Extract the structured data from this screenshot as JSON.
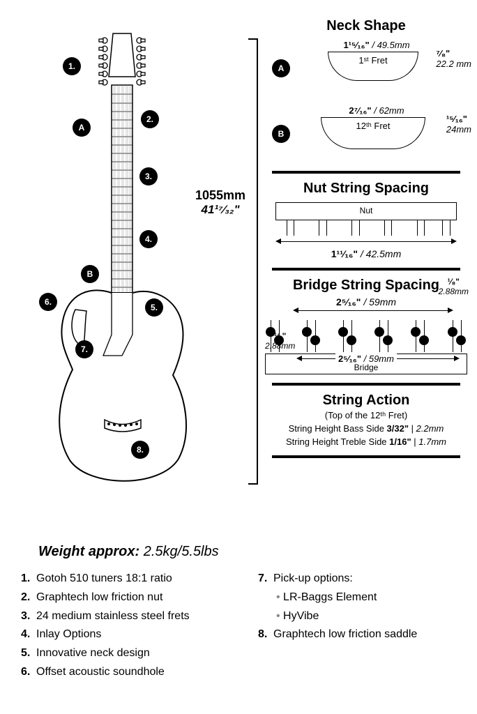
{
  "length": {
    "mm": "1055mm",
    "in": "41¹⁷⁄₃₂\""
  },
  "weight": {
    "label": "Weight approx:",
    "value": "2.5kg/5.5lbs"
  },
  "markers": {
    "n1": "1.",
    "n2": "2.",
    "n3": "3.",
    "n4": "4.",
    "n5": "5.",
    "n6": "6.",
    "n7": "7.",
    "n8": "8.",
    "A": "A",
    "B": "B"
  },
  "neck_shape": {
    "title": "Neck Shape",
    "a": {
      "label": "A",
      "width_in": "1¹⁵⁄₁₆\"",
      "width_mm": "49.5mm",
      "fret": "1ˢᵗ Fret",
      "height_in": "⁷⁄₈\"",
      "height_mm": "22.2 mm"
    },
    "b": {
      "label": "B",
      "width_in": "2⁷⁄₁₆\"",
      "width_mm": "62mm",
      "fret": "12ᵗʰ Fret",
      "height_in": "¹⁵⁄₁₆\"",
      "height_mm": "24mm"
    }
  },
  "nut_spacing": {
    "title": "Nut String Spacing",
    "bar_label": "Nut",
    "dim_in": "1¹¹⁄₁₆\"",
    "dim_mm": "42.5mm",
    "string_positions_pct": [
      6,
      10,
      24,
      28,
      42,
      46,
      60,
      64,
      78,
      82,
      92,
      96
    ]
  },
  "bridge_spacing": {
    "title": "Bridge String Spacing",
    "bar_label": "Bridge",
    "top_in": "2⁵⁄₁₆\"",
    "top_mm": "59mm",
    "mid_in": "2⁵⁄₁₆\"",
    "mid_mm": "59mm",
    "side_in": "¹⁄₈\"",
    "side_mm": "2.88mm",
    "pair_positions_pct": [
      5,
      23,
      41,
      59,
      77,
      95
    ]
  },
  "string_action": {
    "title": "String Action",
    "sub": "(Top of the 12ᵗʰ Fret)",
    "bass": {
      "label": "String Height Bass Side",
      "in": "3/32\"",
      "mm": "2.2mm"
    },
    "treble": {
      "label": "String Height Treble Side",
      "in": "1/16\"",
      "mm": "1.7mm"
    }
  },
  "features_left": [
    "Gotoh 510 tuners 18:1 ratio",
    "Graphtech low friction nut",
    "24 medium stainless steel frets",
    "Inlay Options",
    "Innovative neck design",
    "Offset acoustic soundhole"
  ],
  "features_right_7": {
    "label": "Pick-up options:",
    "subs": [
      "LR-Baggs Element",
      "HyVibe"
    ]
  },
  "features_right_8": "Graphtech low friction saddle",
  "colors": {
    "ink": "#000000",
    "bg": "#ffffff"
  }
}
